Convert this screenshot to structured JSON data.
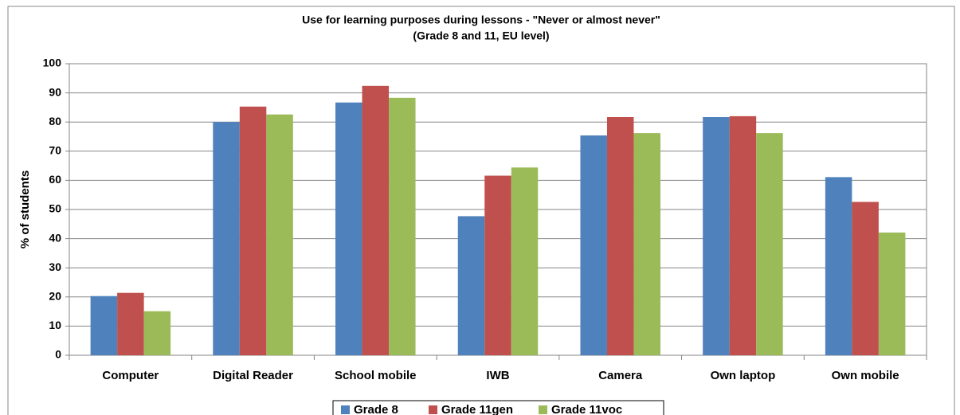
{
  "chart_data": {
    "type": "bar",
    "title": "Use for learning purposes during lessons - \"Never or almost never\"",
    "subtitle": "(Grade 8 and 11, EU level)",
    "y_label": "% of students",
    "categories": [
      "Computer",
      "Digital Reader",
      "School mobile",
      "IWB",
      "Camera",
      "Own laptop",
      "Own mobile"
    ],
    "series": [
      {
        "name": "Grade 8",
        "color": "#4f81bd",
        "values": [
          20.3,
          80.0,
          86.7,
          47.7,
          75.4,
          81.7,
          61.1
        ]
      },
      {
        "name": "Grade 11gen",
        "color": "#c0504d",
        "values": [
          21.4,
          85.3,
          92.4,
          61.6,
          81.7,
          82.0,
          52.6
        ]
      },
      {
        "name": "Grade 11voc",
        "color": "#9bbb59",
        "values": [
          15.1,
          82.6,
          88.3,
          64.4,
          76.2,
          76.2,
          42.1
        ]
      }
    ],
    "ylim": [
      0,
      100
    ],
    "yticks": [
      0,
      10,
      20,
      30,
      40,
      50,
      60,
      70,
      80,
      90,
      100
    ],
    "grid": true,
    "legend": "bottom"
  }
}
